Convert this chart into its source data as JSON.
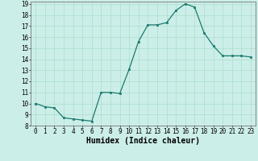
{
  "x": [
    0,
    1,
    2,
    3,
    4,
    5,
    6,
    7,
    8,
    9,
    10,
    11,
    12,
    13,
    14,
    15,
    16,
    17,
    18,
    19,
    20,
    21,
    22,
    23
  ],
  "y": [
    10.0,
    9.7,
    9.6,
    8.7,
    8.6,
    8.5,
    8.4,
    11.0,
    11.0,
    10.9,
    13.1,
    15.6,
    17.1,
    17.1,
    17.3,
    18.4,
    19.0,
    18.7,
    16.4,
    15.2,
    14.3,
    14.3,
    14.3,
    14.2
  ],
  "xlabel": "Humidex (Indice chaleur)",
  "ylim": [
    8,
    19
  ],
  "xlim": [
    -0.5,
    23.5
  ],
  "yticks": [
    8,
    9,
    10,
    11,
    12,
    13,
    14,
    15,
    16,
    17,
    18,
    19
  ],
  "xticks": [
    0,
    1,
    2,
    3,
    4,
    5,
    6,
    7,
    8,
    9,
    10,
    11,
    12,
    13,
    14,
    15,
    16,
    17,
    18,
    19,
    20,
    21,
    22,
    23
  ],
  "line_color": "#1a7a6e",
  "marker_color": "#1a7a6e",
  "bg_color": "#cceee8",
  "grid_color": "#aaddcc",
  "tick_fontsize": 5.5,
  "xlabel_fontsize": 7,
  "marker_size": 2.0,
  "line_width": 0.9
}
